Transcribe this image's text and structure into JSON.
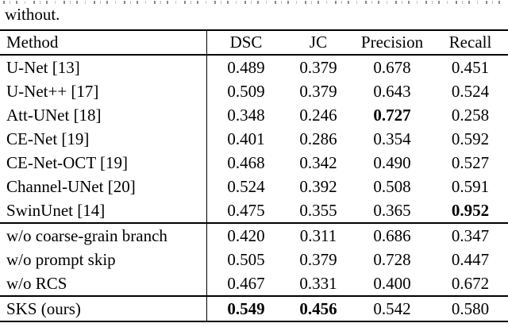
{
  "caption": {
    "visible_line": "without."
  },
  "colors": {
    "text": "#000000",
    "background": "#ffffff",
    "rule": "#000000"
  },
  "table": {
    "columns": [
      "Method",
      "DSC",
      "JC",
      "Precision",
      "Recall"
    ],
    "sections": [
      {
        "rows": [
          {
            "method": "U-Net [13]",
            "values": [
              "0.489",
              "0.379",
              "0.678",
              "0.451"
            ],
            "bold": []
          },
          {
            "method": "U-Net++ [17]",
            "values": [
              "0.509",
              "0.379",
              "0.643",
              "0.524"
            ],
            "bold": []
          },
          {
            "method": "Att-UNet [18]",
            "values": [
              "0.348",
              "0.246",
              "0.727",
              "0.258"
            ],
            "bold": [
              2
            ]
          },
          {
            "method": "CE-Net [19]",
            "values": [
              "0.401",
              "0.286",
              "0.354",
              "0.592"
            ],
            "bold": []
          },
          {
            "method": "CE-Net-OCT [19]",
            "values": [
              "0.468",
              "0.342",
              "0.490",
              "0.527"
            ],
            "bold": []
          },
          {
            "method": "Channel-UNet [20]",
            "values": [
              "0.524",
              "0.392",
              "0.508",
              "0.591"
            ],
            "bold": []
          },
          {
            "method": "SwinUnet [14]",
            "values": [
              "0.475",
              "0.355",
              "0.365",
              "0.952"
            ],
            "bold": [
              3
            ]
          }
        ]
      },
      {
        "rows": [
          {
            "method": "w/o coarse-grain branch",
            "values": [
              "0.420",
              "0.311",
              "0.686",
              "0.347"
            ],
            "bold": []
          },
          {
            "method": "w/o prompt skip",
            "values": [
              "0.505",
              "0.379",
              "0.728",
              "0.447"
            ],
            "bold": []
          },
          {
            "method": "w/o RCS",
            "values": [
              "0.467",
              "0.331",
              "0.400",
              "0.672"
            ],
            "bold": []
          }
        ]
      },
      {
        "rows": [
          {
            "method": "SKS (ours)",
            "values": [
              "0.549",
              "0.456",
              "0.542",
              "0.580"
            ],
            "bold": [
              0,
              1
            ]
          }
        ]
      }
    ]
  }
}
